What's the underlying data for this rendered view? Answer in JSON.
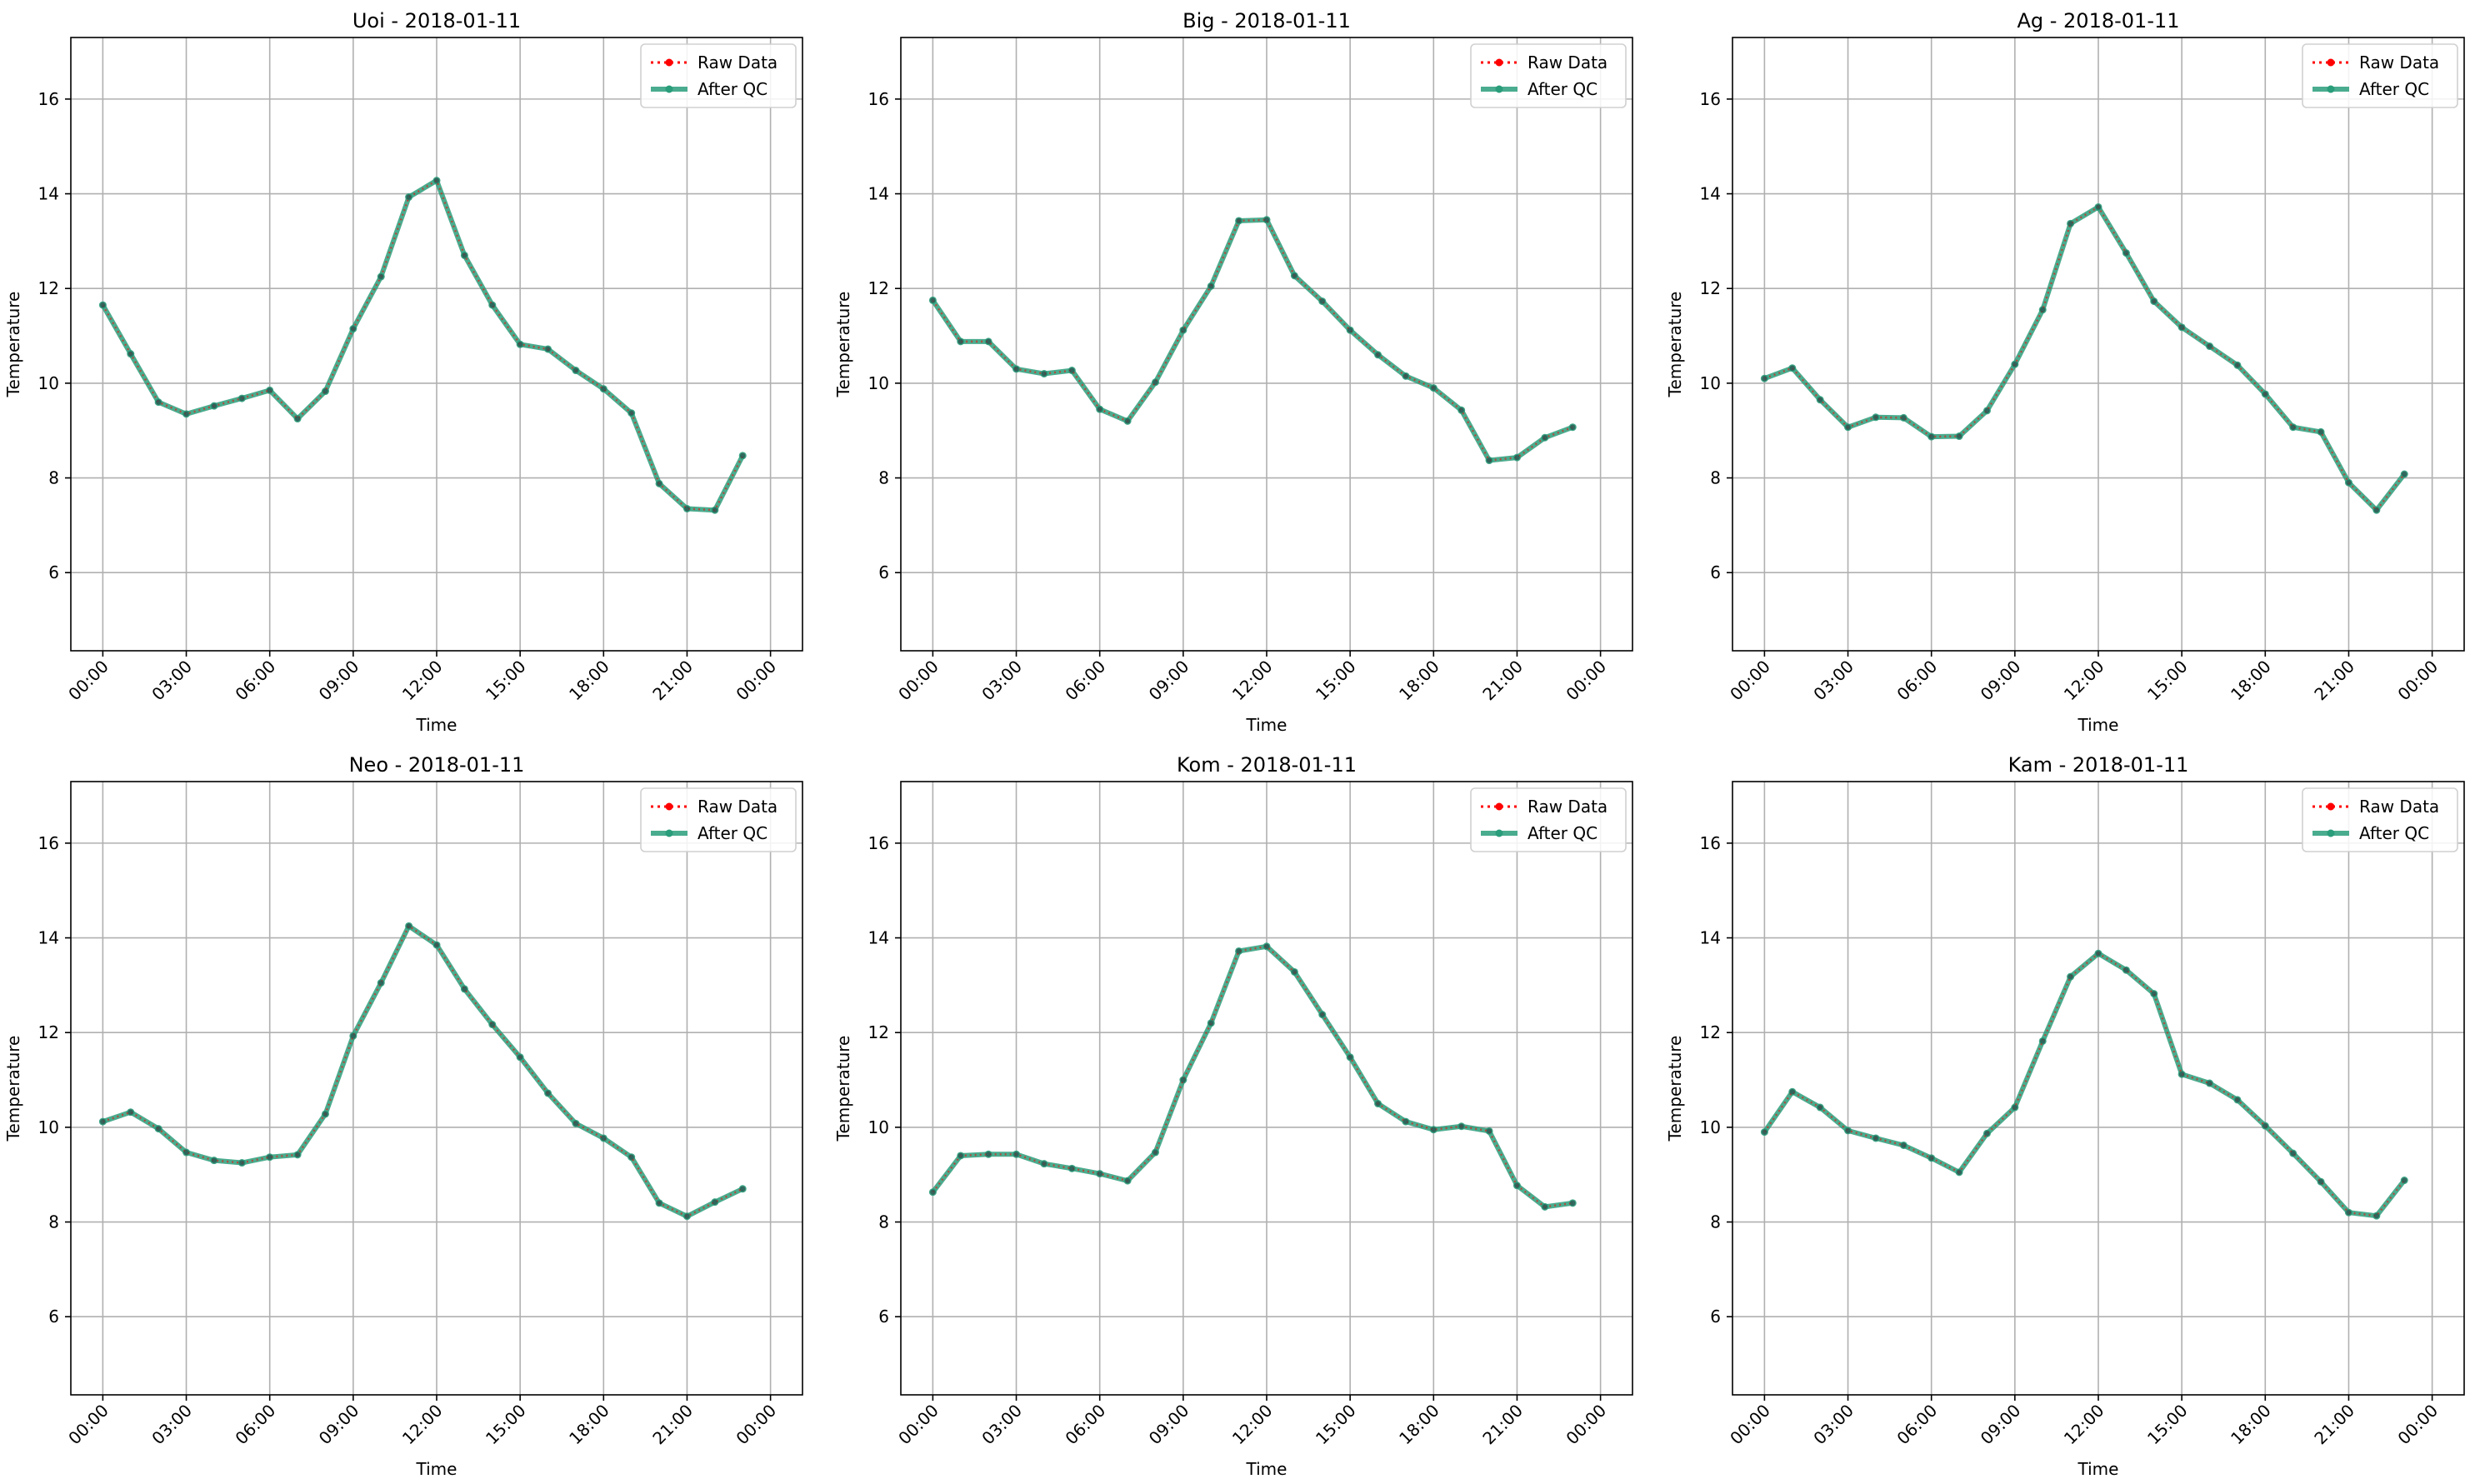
{
  "chart_data": [
    {
      "type": "line",
      "title": "Uoi - 2018-01-11",
      "xlabel": "Time",
      "ylabel": "Temperature",
      "x_hours": [
        0,
        1,
        2,
        3,
        4,
        5,
        6,
        7,
        8,
        9,
        10,
        11,
        12,
        13,
        14,
        15,
        16,
        17,
        18,
        19,
        20,
        21,
        22,
        23
      ],
      "xlim": [
        "2018-01-10 22:51",
        "2018-01-12 01:09"
      ],
      "ylim": [
        4.35,
        17.3
      ],
      "xticks": [
        "00:00",
        "03:00",
        "06:00",
        "09:00",
        "12:00",
        "15:00",
        "18:00",
        "21:00",
        "00:00"
      ],
      "yticks": [
        6,
        8,
        10,
        12,
        14,
        16
      ],
      "grid": true,
      "legend_position": "top-right",
      "series": [
        {
          "name": "Raw Data",
          "color": "#ff0000",
          "style": "dotted-marker",
          "values": [
            11.65,
            10.62,
            9.6,
            9.35,
            9.52,
            9.68,
            9.85,
            9.25,
            9.83,
            11.15,
            12.25,
            13.93,
            14.28,
            12.7,
            11.65,
            10.82,
            10.72,
            10.27,
            9.88,
            9.37,
            7.88,
            7.35,
            7.32,
            8.47
          ]
        },
        {
          "name": "After QC",
          "color": "#2a9d7a",
          "style": "solid-marker",
          "values": [
            11.65,
            10.62,
            9.6,
            9.35,
            9.52,
            9.68,
            9.85,
            9.25,
            9.83,
            11.15,
            12.25,
            13.93,
            14.28,
            12.7,
            11.65,
            10.82,
            10.72,
            10.27,
            9.88,
            9.37,
            7.88,
            7.35,
            7.32,
            8.47
          ]
        }
      ]
    },
    {
      "type": "line",
      "title": "Big - 2018-01-11",
      "xlabel": "Time",
      "ylabel": "Temperature",
      "x_hours": [
        0,
        1,
        2,
        3,
        4,
        5,
        6,
        7,
        8,
        9,
        10,
        11,
        12,
        13,
        14,
        15,
        16,
        17,
        18,
        19,
        20,
        21,
        22,
        23
      ],
      "xlim": [
        "2018-01-10 22:51",
        "2018-01-12 01:09"
      ],
      "ylim": [
        4.35,
        17.3
      ],
      "xticks": [
        "00:00",
        "03:00",
        "06:00",
        "09:00",
        "12:00",
        "15:00",
        "18:00",
        "21:00",
        "00:00"
      ],
      "yticks": [
        6,
        8,
        10,
        12,
        14,
        16
      ],
      "grid": true,
      "legend_position": "top-right",
      "series": [
        {
          "name": "Raw Data",
          "color": "#ff0000",
          "style": "dotted-marker",
          "values": [
            11.75,
            10.88,
            10.88,
            10.3,
            10.2,
            10.27,
            9.45,
            9.2,
            10.02,
            11.12,
            12.05,
            13.43,
            13.45,
            12.27,
            11.73,
            11.12,
            10.6,
            10.15,
            9.9,
            9.43,
            8.37,
            8.43,
            8.85,
            9.07
          ]
        },
        {
          "name": "After QC",
          "color": "#2a9d7a",
          "style": "solid-marker",
          "values": [
            11.75,
            10.88,
            10.88,
            10.3,
            10.2,
            10.27,
            9.45,
            9.2,
            10.02,
            11.12,
            12.05,
            13.43,
            13.45,
            12.27,
            11.73,
            11.12,
            10.6,
            10.15,
            9.9,
            9.43,
            8.37,
            8.43,
            8.85,
            9.07
          ]
        }
      ]
    },
    {
      "type": "line",
      "title": "Ag - 2018-01-11",
      "xlabel": "Time",
      "ylabel": "Temperature",
      "x_hours": [
        0,
        1,
        2,
        3,
        4,
        5,
        6,
        7,
        8,
        9,
        10,
        11,
        12,
        13,
        14,
        15,
        16,
        17,
        18,
        19,
        20,
        21,
        22,
        23
      ],
      "xlim": [
        "2018-01-10 22:51",
        "2018-01-12 01:09"
      ],
      "ylim": [
        4.35,
        17.3
      ],
      "xticks": [
        "00:00",
        "03:00",
        "06:00",
        "09:00",
        "12:00",
        "15:00",
        "18:00",
        "21:00",
        "00:00"
      ],
      "yticks": [
        6,
        8,
        10,
        12,
        14,
        16
      ],
      "grid": true,
      "legend_position": "top-right",
      "series": [
        {
          "name": "Raw Data",
          "color": "#ff0000",
          "style": "dotted-marker",
          "values": [
            10.1,
            10.32,
            9.65,
            9.07,
            9.28,
            9.27,
            8.87,
            8.88,
            9.42,
            10.4,
            11.55,
            13.37,
            13.72,
            12.75,
            11.73,
            11.18,
            10.78,
            10.38,
            9.77,
            9.07,
            8.97,
            7.9,
            7.32,
            8.08
          ]
        },
        {
          "name": "After QC",
          "color": "#2a9d7a",
          "style": "solid-marker",
          "values": [
            10.1,
            10.32,
            9.65,
            9.07,
            9.28,
            9.27,
            8.87,
            8.88,
            9.42,
            10.4,
            11.55,
            13.37,
            13.72,
            12.75,
            11.73,
            11.18,
            10.78,
            10.38,
            9.77,
            9.07,
            8.97,
            7.9,
            7.32,
            8.08
          ]
        }
      ]
    },
    {
      "type": "line",
      "title": "Neo - 2018-01-11",
      "xlabel": "Time",
      "ylabel": "Temperature",
      "x_hours": [
        0,
        1,
        2,
        3,
        4,
        5,
        6,
        7,
        8,
        9,
        10,
        11,
        12,
        13,
        14,
        15,
        16,
        17,
        18,
        19,
        20,
        21,
        22,
        23
      ],
      "xlim": [
        "2018-01-10 22:51",
        "2018-01-12 01:09"
      ],
      "ylim": [
        4.35,
        17.3
      ],
      "xticks": [
        "00:00",
        "03:00",
        "06:00",
        "09:00",
        "12:00",
        "15:00",
        "18:00",
        "21:00",
        "00:00"
      ],
      "yticks": [
        6,
        8,
        10,
        12,
        14,
        16
      ],
      "grid": true,
      "legend_position": "top-right",
      "series": [
        {
          "name": "Raw Data",
          "color": "#ff0000",
          "style": "dotted-marker",
          "values": [
            10.12,
            10.32,
            9.97,
            9.47,
            9.3,
            9.25,
            9.37,
            9.42,
            10.28,
            11.93,
            13.05,
            14.25,
            13.85,
            12.92,
            12.17,
            11.48,
            10.72,
            10.08,
            9.77,
            9.37,
            8.4,
            8.12,
            8.42,
            8.7
          ]
        },
        {
          "name": "After QC",
          "color": "#2a9d7a",
          "style": "solid-marker",
          "values": [
            10.12,
            10.32,
            9.97,
            9.47,
            9.3,
            9.25,
            9.37,
            9.42,
            10.28,
            11.93,
            13.05,
            14.25,
            13.85,
            12.92,
            12.17,
            11.48,
            10.72,
            10.08,
            9.77,
            9.37,
            8.4,
            8.12,
            8.42,
            8.7
          ]
        }
      ]
    },
    {
      "type": "line",
      "title": "Kom - 2018-01-11",
      "xlabel": "Time",
      "ylabel": "Temperature",
      "x_hours": [
        0,
        1,
        2,
        3,
        4,
        5,
        6,
        7,
        8,
        9,
        10,
        11,
        12,
        13,
        14,
        15,
        16,
        17,
        18,
        19,
        20,
        21,
        22,
        23
      ],
      "xlim": [
        "2018-01-10 22:51",
        "2018-01-12 01:09"
      ],
      "ylim": [
        4.35,
        17.3
      ],
      "xticks": [
        "00:00",
        "03:00",
        "06:00",
        "09:00",
        "12:00",
        "15:00",
        "18:00",
        "21:00",
        "00:00"
      ],
      "yticks": [
        6,
        8,
        10,
        12,
        14,
        16
      ],
      "grid": true,
      "legend_position": "top-right",
      "series": [
        {
          "name": "Raw Data",
          "color": "#ff0000",
          "style": "dotted-marker",
          "values": [
            8.63,
            9.4,
            9.43,
            9.43,
            9.23,
            9.13,
            9.02,
            8.87,
            9.47,
            11.0,
            12.2,
            13.72,
            13.82,
            13.28,
            12.38,
            11.48,
            10.5,
            10.12,
            9.95,
            10.02,
            9.92,
            8.77,
            8.32,
            8.4
          ]
        },
        {
          "name": "After QC",
          "color": "#2a9d7a",
          "style": "solid-marker",
          "values": [
            8.63,
            9.4,
            9.43,
            9.43,
            9.23,
            9.13,
            9.02,
            8.87,
            9.47,
            11.0,
            12.2,
            13.72,
            13.82,
            13.28,
            12.38,
            11.48,
            10.5,
            10.12,
            9.95,
            10.02,
            9.92,
            8.77,
            8.32,
            8.4
          ]
        }
      ]
    },
    {
      "type": "line",
      "title": "Kam - 2018-01-11",
      "xlabel": "Time",
      "ylabel": "Temperature",
      "x_hours": [
        0,
        1,
        2,
        3,
        4,
        5,
        6,
        7,
        8,
        9,
        10,
        11,
        12,
        13,
        14,
        15,
        16,
        17,
        18,
        19,
        20,
        21,
        22,
        23
      ],
      "xlim": [
        "2018-01-10 22:51",
        "2018-01-12 01:09"
      ],
      "ylim": [
        4.35,
        17.3
      ],
      "xticks": [
        "00:00",
        "03:00",
        "06:00",
        "09:00",
        "12:00",
        "15:00",
        "18:00",
        "21:00",
        "00:00"
      ],
      "yticks": [
        6,
        8,
        10,
        12,
        14,
        16
      ],
      "grid": true,
      "legend_position": "top-right",
      "series": [
        {
          "name": "Raw Data",
          "color": "#ff0000",
          "style": "dotted-marker",
          "values": [
            9.9,
            10.75,
            10.42,
            9.93,
            9.77,
            9.62,
            9.35,
            9.05,
            9.87,
            10.42,
            11.82,
            13.18,
            13.67,
            13.32,
            12.82,
            11.12,
            10.93,
            10.58,
            10.03,
            9.45,
            8.85,
            8.2,
            8.13,
            8.88
          ]
        },
        {
          "name": "After QC",
          "color": "#2a9d7a",
          "style": "solid-marker",
          "values": [
            9.9,
            10.75,
            10.42,
            9.93,
            9.77,
            9.62,
            9.35,
            9.05,
            9.87,
            10.42,
            11.82,
            13.18,
            13.67,
            13.32,
            12.82,
            11.12,
            10.93,
            10.58,
            10.03,
            9.45,
            8.85,
            8.2,
            8.13,
            8.88
          ]
        }
      ]
    }
  ]
}
